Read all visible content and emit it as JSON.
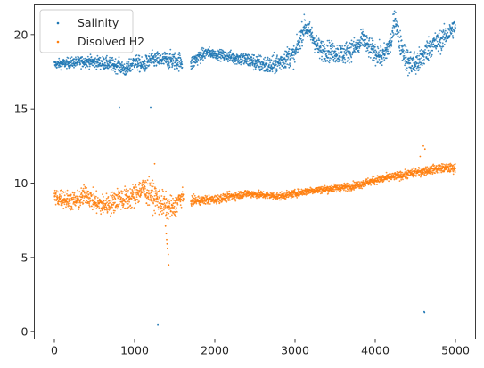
{
  "chart_data": {
    "type": "scatter",
    "title": "",
    "xlabel": "",
    "ylabel": "",
    "xlim": [
      -250,
      5250
    ],
    "ylim": [
      -0.5,
      22
    ],
    "x_ticks": [
      0,
      1000,
      2000,
      3000,
      4000,
      5000
    ],
    "y_ticks": [
      0,
      5,
      10,
      15,
      20
    ],
    "grid": false,
    "legend_position": "top-left",
    "series": [
      {
        "name": "Salinity",
        "color": "#1f77b4",
        "trend": [
          [
            0,
            18.0
          ],
          [
            200,
            18.1
          ],
          [
            400,
            18.2
          ],
          [
            600,
            18.1
          ],
          [
            800,
            17.9
          ],
          [
            900,
            17.6
          ],
          [
            1000,
            18.2
          ],
          [
            1100,
            17.9
          ],
          [
            1200,
            18.3
          ],
          [
            1400,
            18.3
          ],
          [
            1600,
            18.2
          ],
          [
            1700,
            18.0
          ],
          [
            1800,
            18.5
          ],
          [
            1900,
            18.8
          ],
          [
            2000,
            18.7
          ],
          [
            2200,
            18.5
          ],
          [
            2400,
            18.3
          ],
          [
            2600,
            18.0
          ],
          [
            2700,
            17.9
          ],
          [
            2800,
            18.1
          ],
          [
            2900,
            18.5
          ],
          [
            3000,
            18.6
          ],
          [
            3050,
            19.5
          ],
          [
            3120,
            20.6
          ],
          [
            3200,
            20.0
          ],
          [
            3300,
            19.0
          ],
          [
            3400,
            18.9
          ],
          [
            3500,
            18.8
          ],
          [
            3600,
            18.7
          ],
          [
            3700,
            19.0
          ],
          [
            3800,
            19.2
          ],
          [
            3850,
            19.8
          ],
          [
            3900,
            19.2
          ],
          [
            4000,
            18.8
          ],
          [
            4100,
            18.5
          ],
          [
            4200,
            19.5
          ],
          [
            4250,
            21.2
          ],
          [
            4300,
            19.6
          ],
          [
            4400,
            18.2
          ],
          [
            4500,
            18.0
          ],
          [
            4550,
            18.2
          ],
          [
            4600,
            18.6
          ],
          [
            4700,
            19.3
          ],
          [
            4800,
            19.5
          ],
          [
            4900,
            20.0
          ],
          [
            5000,
            20.6
          ]
        ],
        "noise": [
          [
            0,
            0.15
          ],
          [
            1000,
            0.25
          ],
          [
            1600,
            0.3
          ],
          [
            2000,
            0.15
          ],
          [
            2600,
            0.3
          ],
          [
            3000,
            0.35
          ],
          [
            4000,
            0.35
          ],
          [
            4500,
            0.45
          ],
          [
            5000,
            0.3
          ]
        ],
        "gaps": [
          [
            1595,
            1700
          ]
        ],
        "outliers": [
          [
            810,
            15.1
          ],
          [
            1200,
            15.1
          ],
          [
            1290,
            0.45
          ],
          [
            4610,
            1.35
          ],
          [
            4615,
            1.3
          ]
        ]
      },
      {
        "name": "Disolved H2",
        "color": "#ff7f0e",
        "trend": [
          [
            0,
            9.0
          ],
          [
            100,
            9.0
          ],
          [
            200,
            8.8
          ],
          [
            300,
            8.8
          ],
          [
            400,
            9.3
          ],
          [
            500,
            8.7
          ],
          [
            600,
            8.5
          ],
          [
            700,
            8.6
          ],
          [
            800,
            9.0
          ],
          [
            900,
            8.9
          ],
          [
            1000,
            9.2
          ],
          [
            1100,
            9.6
          ],
          [
            1200,
            9.3
          ],
          [
            1300,
            8.8
          ],
          [
            1400,
            8.4
          ],
          [
            1500,
            8.3
          ],
          [
            1550,
            8.9
          ],
          [
            1600,
            9.0
          ],
          [
            1700,
            8.8
          ],
          [
            2000,
            8.9
          ],
          [
            2200,
            9.1
          ],
          [
            2400,
            9.3
          ],
          [
            2600,
            9.2
          ],
          [
            2800,
            9.1
          ],
          [
            3000,
            9.3
          ],
          [
            3200,
            9.5
          ],
          [
            3400,
            9.6
          ],
          [
            3600,
            9.7
          ],
          [
            3800,
            9.9
          ],
          [
            4000,
            10.2
          ],
          [
            4200,
            10.4
          ],
          [
            4400,
            10.6
          ],
          [
            4600,
            10.8
          ],
          [
            4800,
            11.0
          ],
          [
            5000,
            11.0
          ]
        ],
        "noise": [
          [
            0,
            0.3
          ],
          [
            1000,
            0.4
          ],
          [
            1300,
            0.45
          ],
          [
            1500,
            0.35
          ],
          [
            1700,
            0.15
          ],
          [
            3000,
            0.12
          ],
          [
            5000,
            0.15
          ]
        ],
        "gaps": [
          [
            1610,
            1700
          ]
        ],
        "outliers": [
          [
            1250,
            11.3
          ],
          [
            1385,
            7.1
          ],
          [
            1395,
            6.6
          ],
          [
            1400,
            6.2
          ],
          [
            1405,
            5.9
          ],
          [
            1410,
            5.6
          ],
          [
            1420,
            5.2
          ],
          [
            1425,
            4.5
          ],
          [
            4600,
            12.5
          ],
          [
            4620,
            12.3
          ],
          [
            4560,
            11.8
          ]
        ]
      }
    ]
  }
}
